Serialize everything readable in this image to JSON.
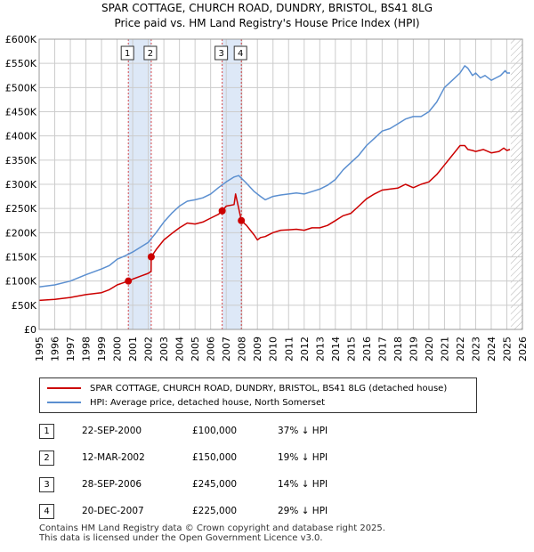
{
  "header": {
    "title_line1": "SPAR COTTAGE, CHURCH ROAD, DUNDRY, BRISTOL, BS41 8LG",
    "title_line2": "Price paid vs. HM Land Registry's House Price Index (HPI)"
  },
  "colors": {
    "property": "#cc0000",
    "hpi": "#5b8fd0",
    "highlight": "#dde8f7",
    "grid": "#cccccc",
    "future_hatch": "#b0b0b0"
  },
  "chart_data": {
    "type": "line",
    "x_range": [
      1995,
      2026
    ],
    "ylim": [
      0,
      600000
    ],
    "y_ticks": [
      0,
      50000,
      100000,
      150000,
      200000,
      250000,
      300000,
      350000,
      400000,
      450000,
      500000,
      550000,
      600000
    ],
    "y_tick_labels": [
      "£0",
      "£50K",
      "£100K",
      "£150K",
      "£200K",
      "£250K",
      "£300K",
      "£350K",
      "£400K",
      "£450K",
      "£500K",
      "£550K",
      "£600K"
    ],
    "x_ticks": [
      1995,
      1996,
      1997,
      1998,
      1999,
      2000,
      2001,
      2002,
      2003,
      2004,
      2005,
      2006,
      2007,
      2008,
      2009,
      2010,
      2011,
      2012,
      2013,
      2014,
      2015,
      2016,
      2017,
      2018,
      2019,
      2020,
      2021,
      2022,
      2023,
      2024,
      2025,
      2026
    ],
    "grid": true,
    "highlight_ranges": [
      [
        2000.72,
        2002.19
      ],
      [
        2006.74,
        2007.97
      ]
    ],
    "future_from": 2025.25,
    "series": [
      {
        "name": "SPAR COTTAGE, CHURCH ROAD, DUNDRY, BRISTOL, BS41 8LG (detached house)",
        "x": [
          1995.0,
          1996.0,
          1997.0,
          1998.0,
          1999.0,
          1999.5,
          2000.0,
          2000.72,
          2001.0,
          2001.5,
          2002.0,
          2002.18,
          2002.19,
          2002.5,
          2003.0,
          2003.5,
          2004.0,
          2004.5,
          2005.0,
          2005.5,
          2006.0,
          2006.5,
          2006.74,
          2007.0,
          2007.5,
          2007.6,
          2007.97,
          2008.3,
          2008.8,
          2009.0,
          2009.2,
          2009.5,
          2010.0,
          2010.5,
          2011.0,
          2011.5,
          2012.0,
          2012.5,
          2013.0,
          2013.5,
          2014.0,
          2014.5,
          2015.0,
          2015.5,
          2016.0,
          2016.5,
          2017.0,
          2017.5,
          2018.0,
          2018.5,
          2019.0,
          2019.5,
          2020.0,
          2020.5,
          2021.0,
          2021.5,
          2022.0,
          2022.3,
          2022.5,
          2022.8,
          2023.0,
          2023.5,
          2024.0,
          2024.5,
          2024.8,
          2025.0,
          2025.2
        ],
        "values": [
          60000,
          62000,
          66000,
          72000,
          76000,
          82000,
          92000,
          100000,
          104000,
          110000,
          116000,
          120000,
          150000,
          165000,
          185000,
          198000,
          210000,
          220000,
          218000,
          222000,
          230000,
          238000,
          245000,
          255000,
          258000,
          280000,
          225000,
          215000,
          195000,
          185000,
          190000,
          192000,
          200000,
          205000,
          206000,
          207000,
          205000,
          210000,
          210000,
          215000,
          225000,
          235000,
          240000,
          255000,
          270000,
          280000,
          288000,
          290000,
          292000,
          300000,
          293000,
          300000,
          305000,
          320000,
          340000,
          360000,
          380000,
          380000,
          372000,
          370000,
          368000,
          372000,
          365000,
          368000,
          375000,
          370000,
          372000
        ]
      },
      {
        "name": "HPI: Average price, detached house, North Somerset",
        "x": [
          1995.0,
          1996.0,
          1997.0,
          1998.0,
          1999.0,
          1999.5,
          2000.0,
          2000.5,
          2001.0,
          2001.5,
          2002.0,
          2002.5,
          2003.0,
          2003.5,
          2004.0,
          2004.5,
          2005.0,
          2005.5,
          2006.0,
          2006.5,
          2007.0,
          2007.5,
          2007.8,
          2008.3,
          2008.8,
          2009.2,
          2009.5,
          2010.0,
          2010.5,
          2011.0,
          2011.5,
          2012.0,
          2012.5,
          2013.0,
          2013.5,
          2014.0,
          2014.5,
          2015.0,
          2015.5,
          2016.0,
          2016.5,
          2017.0,
          2017.5,
          2018.0,
          2018.5,
          2019.0,
          2019.5,
          2020.0,
          2020.5,
          2021.0,
          2021.5,
          2022.0,
          2022.3,
          2022.5,
          2022.8,
          2023.0,
          2023.3,
          2023.6,
          2024.0,
          2024.3,
          2024.6,
          2024.9,
          2025.0,
          2025.2
        ],
        "values": [
          88000,
          92000,
          100000,
          113000,
          125000,
          132000,
          145000,
          152000,
          160000,
          170000,
          180000,
          200000,
          222000,
          240000,
          255000,
          265000,
          268000,
          272000,
          280000,
          293000,
          305000,
          315000,
          318000,
          302000,
          285000,
          275000,
          268000,
          275000,
          278000,
          280000,
          282000,
          280000,
          285000,
          290000,
          298000,
          310000,
          330000,
          345000,
          360000,
          380000,
          395000,
          410000,
          415000,
          425000,
          435000,
          440000,
          440000,
          450000,
          470000,
          500000,
          515000,
          530000,
          545000,
          540000,
          525000,
          530000,
          520000,
          525000,
          515000,
          520000,
          525000,
          535000,
          530000,
          530000
        ]
      }
    ],
    "markers": [
      {
        "label": "1",
        "x": 2000.72,
        "y": 100000
      },
      {
        "label": "2",
        "x": 2002.19,
        "y": 150000
      },
      {
        "label": "3",
        "x": 2006.74,
        "y": 245000
      },
      {
        "label": "4",
        "x": 2007.97,
        "y": 225000
      }
    ]
  },
  "legend": {
    "property_label": "SPAR COTTAGE, CHURCH ROAD, DUNDRY, BRISTOL, BS41 8LG (detached house)",
    "hpi_label": "HPI: Average price, detached house, North Somerset"
  },
  "transactions": [
    {
      "num": "1",
      "date": "22-SEP-2000",
      "price": "£100,000",
      "hpi": "37% ↓ HPI"
    },
    {
      "num": "2",
      "date": "12-MAR-2002",
      "price": "£150,000",
      "hpi": "19% ↓ HPI"
    },
    {
      "num": "3",
      "date": "28-SEP-2006",
      "price": "£245,000",
      "hpi": "14% ↓ HPI"
    },
    {
      "num": "4",
      "date": "20-DEC-2007",
      "price": "£225,000",
      "hpi": "29% ↓ HPI"
    }
  ],
  "footer": {
    "line1": "Contains HM Land Registry data © Crown copyright and database right 2025.",
    "line2": "This data is licensed under the Open Government Licence v3.0."
  }
}
